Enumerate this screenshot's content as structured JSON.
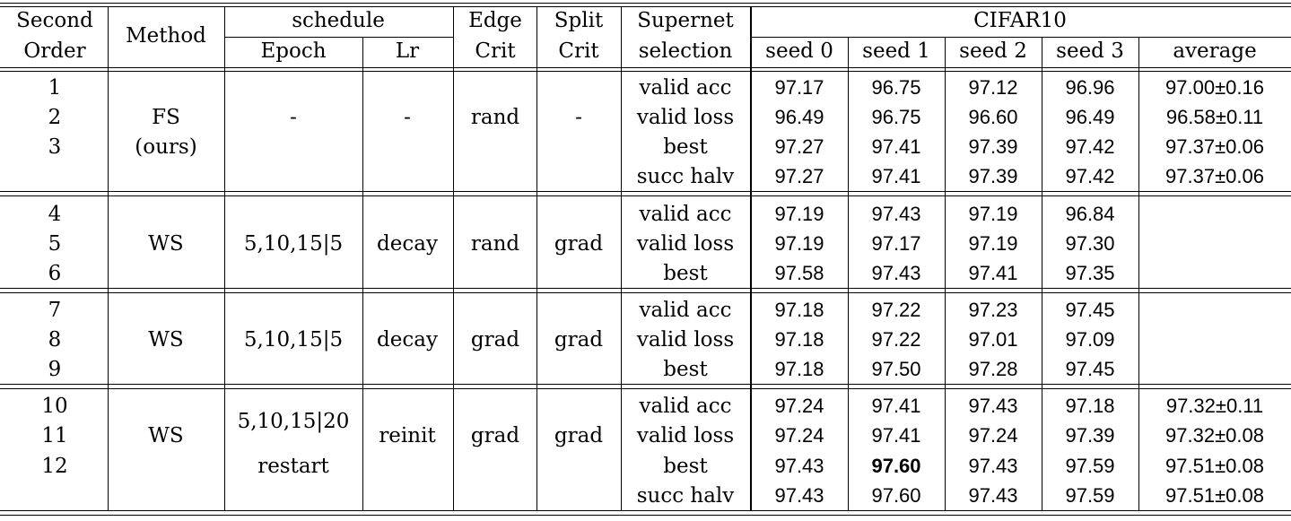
{
  "header": {
    "second_order_1": "Second",
    "second_order_2": "Order",
    "method": "Method",
    "schedule": "schedule",
    "epoch": "Epoch",
    "lr": "Lr",
    "edge_1": "Edge",
    "edge_2": "Crit",
    "split_1": "Split",
    "split_2": "Crit",
    "supernet_1": "Supernet",
    "supernet_2": "selection",
    "dataset": "CIFAR10",
    "seed0": "seed 0",
    "seed1": "seed 1",
    "seed2": "seed 2",
    "seed3": "seed 3",
    "average": "average"
  },
  "groups": [
    {
      "method": "FS",
      "method_sub": "(ours)",
      "epoch": "-",
      "epoch_sub": "",
      "lr": "-",
      "edge": "rand",
      "split": "-",
      "rows": [
        {
          "order": "1",
          "selection": "valid acc",
          "seeds": [
            "97.17",
            "96.75",
            "97.12",
            "96.96"
          ],
          "average": "97.00±0.16"
        },
        {
          "order": "2",
          "selection": "valid loss",
          "seeds": [
            "96.49",
            "96.75",
            "96.60",
            "96.49"
          ],
          "average": "96.58±0.11"
        },
        {
          "order": "3",
          "selection": "best",
          "seeds": [
            "97.27",
            "97.41",
            "97.39",
            "97.42"
          ],
          "average": "97.37±0.06"
        },
        {
          "order": "",
          "selection": "succ halv",
          "seeds": [
            "97.27",
            "97.41",
            "97.39",
            "97.42"
          ],
          "average": "97.37±0.06"
        }
      ]
    },
    {
      "method": "WS",
      "method_sub": "",
      "epoch": "5,10,15|5",
      "epoch_sub": "",
      "lr": "decay",
      "edge": "rand",
      "split": "grad",
      "rows": [
        {
          "order": "4",
          "selection": "valid acc",
          "seeds": [
            "97.19",
            "97.43",
            "97.19",
            "96.84"
          ],
          "average": ""
        },
        {
          "order": "5",
          "selection": "valid loss",
          "seeds": [
            "97.19",
            "97.17",
            "97.19",
            "97.30"
          ],
          "average": ""
        },
        {
          "order": "6",
          "selection": "best",
          "seeds": [
            "97.58",
            "97.43",
            "97.41",
            "97.35"
          ],
          "average": ""
        }
      ]
    },
    {
      "method": "WS",
      "method_sub": "",
      "epoch": "5,10,15|5",
      "epoch_sub": "",
      "lr": "decay",
      "edge": "grad",
      "split": "grad",
      "rows": [
        {
          "order": "7",
          "selection": "valid acc",
          "seeds": [
            "97.18",
            "97.22",
            "97.23",
            "97.45"
          ],
          "average": ""
        },
        {
          "order": "8",
          "selection": "valid loss",
          "seeds": [
            "97.18",
            "97.22",
            "97.01",
            "97.09"
          ],
          "average": ""
        },
        {
          "order": "9",
          "selection": "best",
          "seeds": [
            "97.18",
            "97.50",
            "97.28",
            "97.45"
          ],
          "average": ""
        }
      ]
    },
    {
      "method": "WS",
      "method_sub": "",
      "epoch": "5,10,15|20",
      "epoch_sub": "restart",
      "lr": "reinit",
      "edge": "grad",
      "split": "grad",
      "rows": [
        {
          "order": "10",
          "selection": "valid acc",
          "seeds": [
            "97.24",
            "97.41",
            "97.43",
            "97.18"
          ],
          "average": "97.32±0.11"
        },
        {
          "order": "11",
          "selection": "valid loss",
          "seeds": [
            "97.24",
            "97.41",
            "97.24",
            "97.39"
          ],
          "average": "97.32±0.08"
        },
        {
          "order": "12",
          "selection": "best",
          "seeds": [
            "97.43",
            "97.60",
            "97.43",
            "97.59"
          ],
          "average": "97.51±0.08"
        },
        {
          "order": "",
          "selection": "succ halv",
          "seeds": [
            "97.43",
            "97.60",
            "97.43",
            "97.59"
          ],
          "average": "97.51±0.08"
        }
      ]
    }
  ],
  "bold_cell": {
    "group": 3,
    "row": 2,
    "seed": 1
  }
}
